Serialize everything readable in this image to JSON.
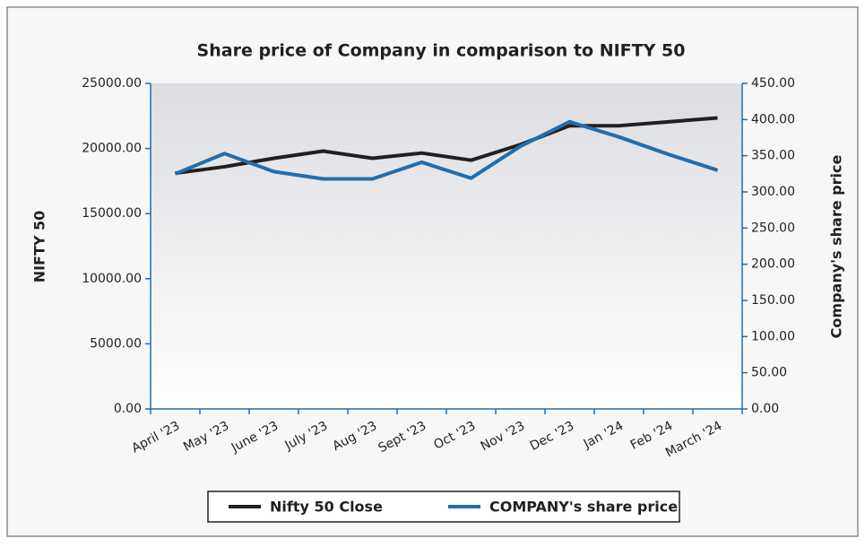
{
  "chart_data": {
    "type": "line",
    "title": "Share price of Company in comparison to NIFTY 50",
    "ylabel": "NIFTY 50",
    "y2label": "Company's share price",
    "categories": [
      "April '23",
      "May '23",
      "June '23",
      "July '23",
      "Aug '23",
      "Sept '23",
      "Oct '23",
      "Nov '23",
      "Dec '23",
      "Jan '24",
      "Feb '24",
      "March '24"
    ],
    "series": [
      {
        "name": "Nifty 50 Close",
        "color": "#231f20",
        "values": [
          18100,
          18600,
          19250,
          19800,
          19250,
          19650,
          19100,
          20300,
          21750,
          21750,
          22050,
          22350
        ]
      },
      {
        "name": "COMPANY's share price",
        "color": "#1f6eb0",
        "axis": "y2",
        "values": [
          325,
          353,
          328,
          318,
          318,
          341,
          319,
          363,
          397,
          376,
          352,
          330
        ]
      }
    ],
    "ylim": [
      0,
      25000
    ],
    "yticks": [
      {
        "value": 0,
        "label": "0.00"
      },
      {
        "value": 5000,
        "label": "5000.00"
      },
      {
        "value": 10000,
        "label": "10000.00"
      },
      {
        "value": 15000,
        "label": "15000.00"
      },
      {
        "value": 20000,
        "label": "20000.00"
      },
      {
        "value": 25000,
        "label": "25000.00"
      }
    ],
    "y2lim": [
      0,
      450
    ],
    "y2ticks": [
      {
        "value": 0,
        "label": "0.00"
      },
      {
        "value": 50,
        "label": "50.00"
      },
      {
        "value": 100,
        "label": "100.00"
      },
      {
        "value": 150,
        "label": "150.00"
      },
      {
        "value": 200,
        "label": "200.00"
      },
      {
        "value": 250,
        "label": "250.00"
      },
      {
        "value": 300,
        "label": "300.00"
      },
      {
        "value": 350,
        "label": "350.00"
      },
      {
        "value": 400,
        "label": "400.00"
      },
      {
        "value": 450,
        "label": "450.00"
      }
    ],
    "legend": "bottom"
  }
}
